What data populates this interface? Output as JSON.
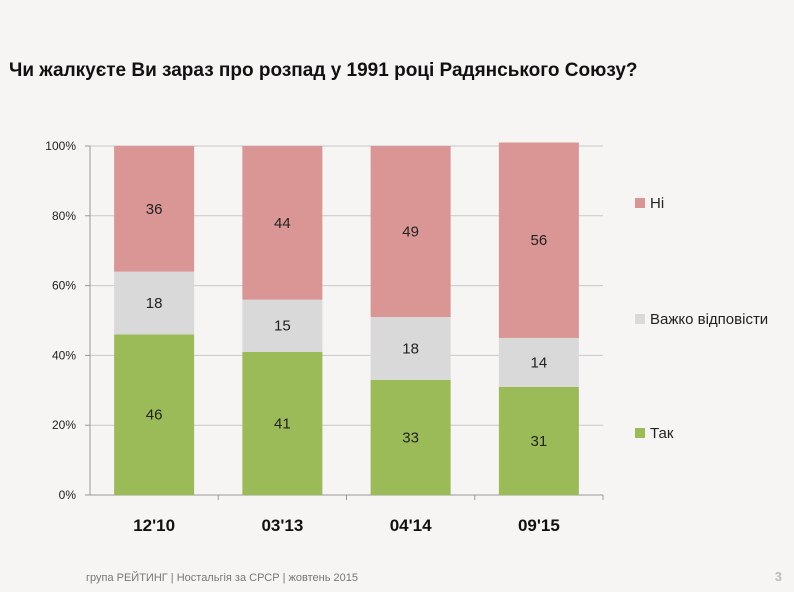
{
  "slide": {
    "footer": "група РЕЙТИНГ  |  Ностальгія за СРСР | жовтень 2015",
    "page_number": "3"
  },
  "chart_data": {
    "type": "bar",
    "stacked": true,
    "title": "Чи жалкуєте Ви зараз про розпад у 1991 році Радянського Союзу?",
    "xlabel": "",
    "ylabel": "",
    "categories": [
      "12'10",
      "03'13",
      "04'14",
      "09'15"
    ],
    "ylim": [
      0,
      100
    ],
    "yticks": [
      0,
      20,
      40,
      60,
      80,
      100
    ],
    "ytick_labels": [
      "0%",
      "20%",
      "40%",
      "60%",
      "80%",
      "100%"
    ],
    "legend_position": "right",
    "series": [
      {
        "name": "Так",
        "color": "#9bbb59",
        "values": [
          46,
          41,
          33,
          31
        ]
      },
      {
        "name": "Важко відповісти",
        "color": "#d9d9d9",
        "values": [
          18,
          15,
          18,
          14
        ]
      },
      {
        "name": "Ні",
        "color": "#d99694",
        "values": [
          36,
          44,
          49,
          56
        ]
      }
    ]
  }
}
